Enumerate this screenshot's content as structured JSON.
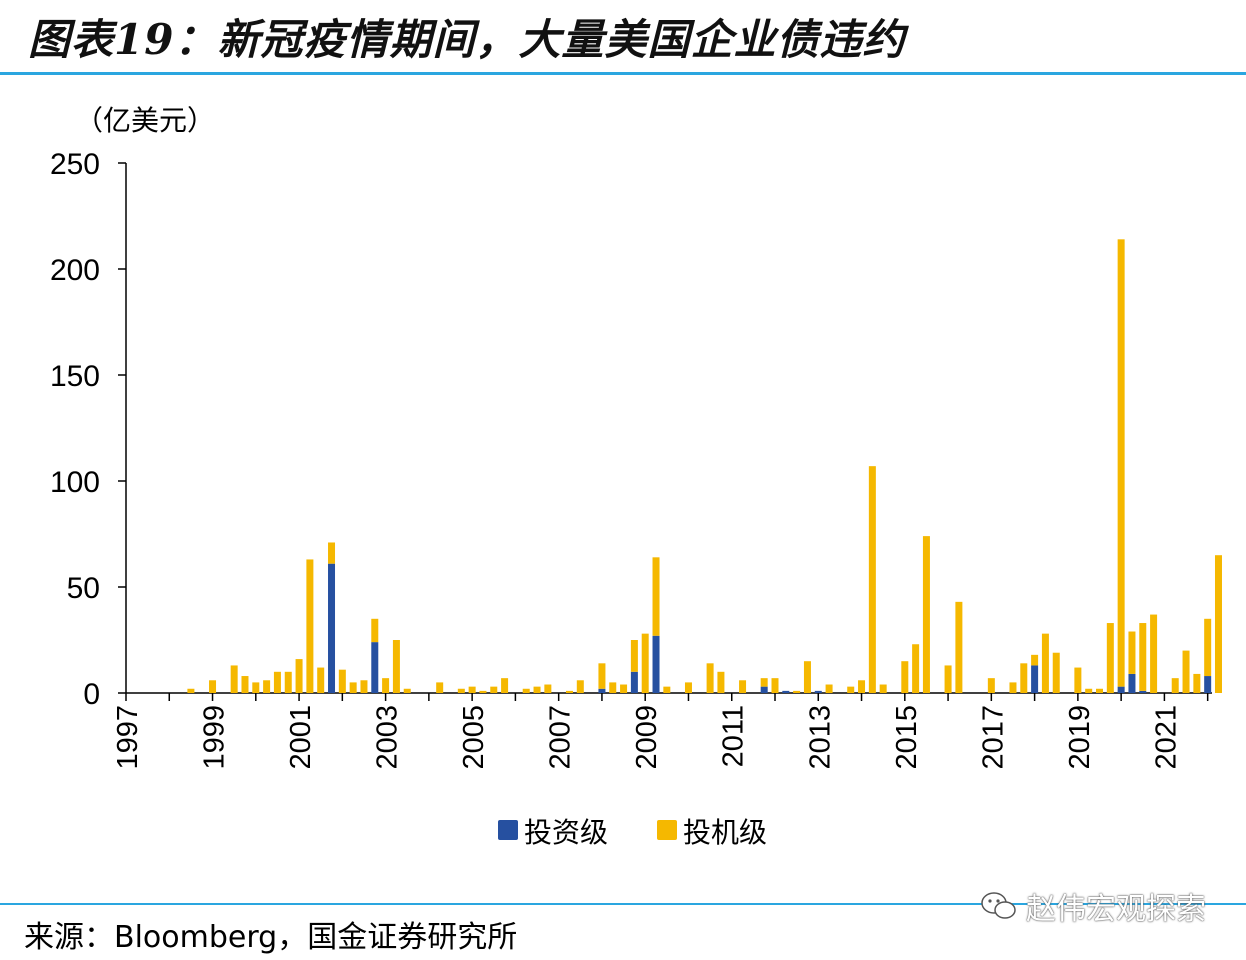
{
  "title": "图表19：新冠疫情期间，大量美国企业债违约",
  "source": "来源：Bloomberg，国金证券研究所",
  "watermark": "赵伟宏观探索",
  "chart_data": {
    "type": "bar",
    "stacked": true,
    "ylabel": "（亿美元）",
    "ylim": [
      0,
      250
    ],
    "yticks": [
      0,
      50,
      100,
      150,
      200,
      250
    ],
    "xlim": [
      1997,
      2022.1
    ],
    "xticks": [
      "1997",
      "1999",
      "2001",
      "2003",
      "2005",
      "2007",
      "2009",
      "2011",
      "2013",
      "2015",
      "2017",
      "2019",
      "2021"
    ],
    "legend_position": "bottom",
    "colors": {
      "投资级": "#2650a0",
      "投机级": "#f5b800"
    },
    "x": [
      1998.5,
      1999.0,
      1999.5,
      1999.75,
      2000.0,
      2000.25,
      2000.5,
      2000.75,
      2001.0,
      2001.25,
      2001.5,
      2001.75,
      2002.0,
      2002.25,
      2002.5,
      2002.75,
      2003.0,
      2003.25,
      2003.5,
      2004.25,
      2004.75,
      2005.0,
      2005.25,
      2005.5,
      2005.75,
      2006.25,
      2006.5,
      2006.75,
      2007.25,
      2007.5,
      2008.0,
      2008.25,
      2008.5,
      2008.75,
      2009.0,
      2009.25,
      2009.5,
      2010.0,
      2010.5,
      2010.75,
      2011.25,
      2011.75,
      2012.0,
      2012.25,
      2012.5,
      2012.75,
      2013.0,
      2013.25,
      2013.75,
      2014.0,
      2014.25,
      2014.5,
      2015.0,
      2015.25,
      2015.5,
      2016.0,
      2016.25,
      2017.0,
      2017.5,
      2017.75,
      2018.0,
      2018.25,
      2018.5,
      2019.0,
      2019.25,
      2019.5,
      2019.75,
      2020.0,
      2020.25,
      2020.5,
      2020.75,
      2021.25,
      2021.5,
      2021.75,
      2022.0,
      2022.25
    ],
    "series": [
      {
        "name": "投资级",
        "values": [
          0,
          0,
          0,
          0,
          0,
          0,
          0,
          0,
          0,
          0,
          0,
          61,
          0,
          0,
          0,
          24,
          0,
          0,
          0,
          0,
          0,
          0,
          0,
          0,
          0,
          0,
          0,
          0,
          0,
          0,
          2,
          0,
          0,
          10,
          0,
          27,
          0,
          0,
          0,
          0,
          0,
          3,
          0,
          1,
          0,
          0,
          1,
          0,
          0,
          0,
          0,
          0,
          0,
          0,
          0,
          0,
          0,
          0,
          0,
          0,
          13,
          0,
          0,
          0,
          0,
          0,
          0,
          3,
          9,
          1,
          0,
          0,
          0,
          0,
          8,
          0
        ]
      },
      {
        "name": "投机级",
        "values": [
          2,
          6,
          13,
          8,
          5,
          6,
          10,
          10,
          16,
          63,
          12,
          10,
          11,
          5,
          6,
          11,
          7,
          25,
          2,
          5,
          2,
          3,
          1,
          3,
          7,
          2,
          3,
          4,
          1,
          6,
          12,
          5,
          4,
          15,
          28,
          37,
          3,
          5,
          14,
          10,
          6,
          4,
          7,
          0,
          1,
          15,
          0,
          4,
          3,
          6,
          107,
          4,
          15,
          23,
          74,
          13,
          43,
          7,
          5,
          14,
          5,
          28,
          19,
          12,
          2,
          2,
          33,
          211,
          20,
          32,
          37,
          7,
          20,
          9,
          27,
          65
        ]
      }
    ]
  }
}
